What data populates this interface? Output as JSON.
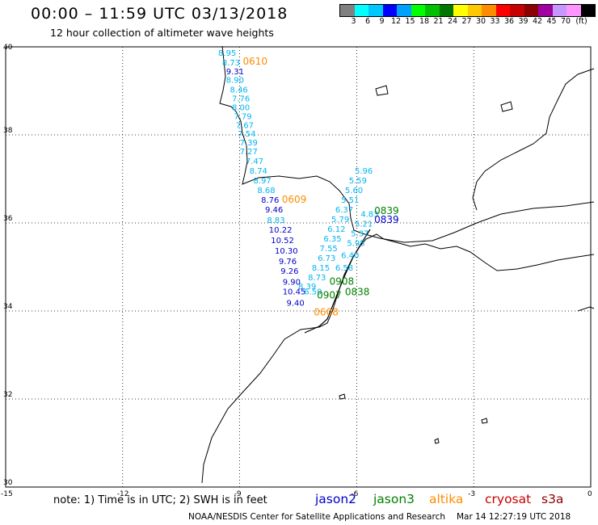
{
  "header": {
    "title": "00:00 – 11:59 UTC 03/13/2018",
    "subtitle": "12 hour collection of altimeter wave heights"
  },
  "legend": {
    "colors": [
      "#808080",
      "#00ffff",
      "#00c8ff",
      "#0000ff",
      "#00a0ff",
      "#00ff00",
      "#00c000",
      "#007800",
      "#ffff00",
      "#ffc800",
      "#ff8c00",
      "#ff0000",
      "#c80000",
      "#8b0000",
      "#a000a0",
      "#c896ff",
      "#ff96ff",
      "#000000"
    ],
    "labels": [
      "3",
      "6",
      "9",
      "12",
      "15",
      "18",
      "21",
      "24",
      "27",
      "30",
      "33",
      "36",
      "39",
      "42",
      "45",
      "70",
      "(ft)"
    ]
  },
  "axes": {
    "lat_labels": [
      "40",
      "38",
      "36",
      "34",
      "32",
      "30"
    ],
    "lon_labels": [
      "-15",
      "-12",
      "-9",
      "-6",
      "-3",
      "0"
    ]
  },
  "measurements": [
    {
      "t": "8.95",
      "lon": -9.55,
      "lat": 39.8,
      "c": "#00b4f0"
    },
    {
      "t": "8.73",
      "lon": -9.45,
      "lat": 39.58,
      "c": "#00b4f0"
    },
    {
      "t": "9.31",
      "lon": -9.35,
      "lat": 39.38,
      "c": "#0000c8"
    },
    {
      "t": "8.90",
      "lon": -9.35,
      "lat": 39.18,
      "c": "#00b4f0"
    },
    {
      "t": "8.46",
      "lon": -9.25,
      "lat": 38.96,
      "c": "#00b4f0"
    },
    {
      "t": "7.76",
      "lon": -9.2,
      "lat": 38.76,
      "c": "#00b4f0"
    },
    {
      "t": "8.00",
      "lon": -9.2,
      "lat": 38.56,
      "c": "#00b4f0"
    },
    {
      "t": "7.79",
      "lon": -9.15,
      "lat": 38.36,
      "c": "#00b4f0"
    },
    {
      "t": "7.67",
      "lon": -9.1,
      "lat": 38.16,
      "c": "#00b4f0"
    },
    {
      "t": "7.54",
      "lon": -9.05,
      "lat": 37.96,
      "c": "#00b4f0"
    },
    {
      "t": "7.39",
      "lon": -9.0,
      "lat": 37.76,
      "c": "#00b4f0"
    },
    {
      "t": "7.27",
      "lon": -9.0,
      "lat": 37.56,
      "c": "#00b4f0"
    },
    {
      "t": "7.47",
      "lon": -8.85,
      "lat": 37.34,
      "c": "#00b4f0"
    },
    {
      "t": "8.74",
      "lon": -8.75,
      "lat": 37.12,
      "c": "#00b4f0"
    },
    {
      "t": "8.97",
      "lon": -8.65,
      "lat": 36.9,
      "c": "#00b4f0"
    },
    {
      "t": "8.68",
      "lon": -8.55,
      "lat": 36.68,
      "c": "#00b4f0"
    },
    {
      "t": "8.76",
      "lon": -8.45,
      "lat": 36.46,
      "c": "#0000c8"
    },
    {
      "t": "9.46",
      "lon": -8.35,
      "lat": 36.24,
      "c": "#0000c8"
    },
    {
      "t": "8.83",
      "lon": -8.3,
      "lat": 36.0,
      "c": "#00b4f0"
    },
    {
      "t": "10.22",
      "lon": -8.25,
      "lat": 35.78,
      "c": "#0000c8"
    },
    {
      "t": "10.52",
      "lon": -8.2,
      "lat": 35.54,
      "c": "#0000c8"
    },
    {
      "t": "10.30",
      "lon": -8.1,
      "lat": 35.3,
      "c": "#0000c8"
    },
    {
      "t": "9.76",
      "lon": -8.0,
      "lat": 35.06,
      "c": "#0000c8"
    },
    {
      "t": "9.26",
      "lon": -7.95,
      "lat": 34.84,
      "c": "#0000c8"
    },
    {
      "t": "9.90",
      "lon": -7.9,
      "lat": 34.6,
      "c": "#0000c8"
    },
    {
      "t": "10.45",
      "lon": -7.9,
      "lat": 34.38,
      "c": "#0000c8"
    },
    {
      "t": "9.40",
      "lon": -7.8,
      "lat": 34.12,
      "c": "#0000c8"
    },
    {
      "t": "8.39",
      "lon": -7.5,
      "lat": 34.5,
      "c": "#00b4f0"
    },
    {
      "t": "6.59",
      "lon": -7.35,
      "lat": 34.38,
      "c": "#00b4f0"
    },
    {
      "t": "8.73",
      "lon": -7.25,
      "lat": 34.7,
      "c": "#00b4f0"
    },
    {
      "t": "8.15",
      "lon": -7.15,
      "lat": 34.92,
      "c": "#00b4f0"
    },
    {
      "t": "6.73",
      "lon": -7.0,
      "lat": 35.14,
      "c": "#00b4f0"
    },
    {
      "t": "7.55",
      "lon": -6.95,
      "lat": 35.36,
      "c": "#00b4f0"
    },
    {
      "t": "6.35",
      "lon": -6.85,
      "lat": 35.58,
      "c": "#00b4f0"
    },
    {
      "t": "6.12",
      "lon": -6.75,
      "lat": 35.8,
      "c": "#00b4f0"
    },
    {
      "t": "5.79",
      "lon": -6.65,
      "lat": 36.02,
      "c": "#00b4f0"
    },
    {
      "t": "6.37",
      "lon": -6.55,
      "lat": 36.24,
      "c": "#00b4f0"
    },
    {
      "t": "5.51",
      "lon": -6.4,
      "lat": 36.46,
      "c": "#00b4f0"
    },
    {
      "t": "5.60",
      "lon": -6.3,
      "lat": 36.68,
      "c": "#00b4f0"
    },
    {
      "t": "5.59",
      "lon": -6.2,
      "lat": 36.9,
      "c": "#00b4f0"
    },
    {
      "t": "5.96",
      "lon": -6.05,
      "lat": 37.12,
      "c": "#00b4f0"
    },
    {
      "t": "6.58",
      "lon": -6.55,
      "lat": 34.92,
      "c": "#00b4f0"
    },
    {
      "t": "6.40",
      "lon": -6.4,
      "lat": 35.2,
      "c": "#00b4f0"
    },
    {
      "t": "5.95",
      "lon": -6.25,
      "lat": 35.48,
      "c": "#00b4f0"
    },
    {
      "t": "5.37",
      "lon": -6.15,
      "lat": 35.7,
      "c": "#00b4f0"
    },
    {
      "t": "5.21",
      "lon": -6.05,
      "lat": 35.92,
      "c": "#00b4f0"
    },
    {
      "t": "4.83",
      "lon": -5.9,
      "lat": 36.14,
      "c": "#00b4f0"
    }
  ],
  "pass_labels": [
    {
      "t": "0610",
      "lon": -8.92,
      "lat": 39.6,
      "c": "#ff8c00"
    },
    {
      "t": "0609",
      "lon": -7.92,
      "lat": 36.46,
      "c": "#ff8c00"
    },
    {
      "t": "0608",
      "lon": -7.1,
      "lat": 33.9,
      "c": "#ff8c00"
    },
    {
      "t": "0908",
      "lon": -6.7,
      "lat": 34.6,
      "c": "#008000"
    },
    {
      "t": "0838",
      "lon": -6.3,
      "lat": 34.36,
      "c": "#008000"
    },
    {
      "t": "0907",
      "lon": -7.02,
      "lat": 34.28,
      "c": "#008000"
    },
    {
      "t": "0839",
      "lon": -5.55,
      "lat": 36.2,
      "c": "#008000"
    },
    {
      "t": "0839",
      "lon": -5.55,
      "lat": 36.0,
      "c": "#0000c8"
    }
  ],
  "footer": {
    "note": "note: 1) Time is in UTC; 2) SWH is in feet",
    "satellites": [
      {
        "name": "jason2",
        "color": "#0000c8"
      },
      {
        "name": "jason3",
        "color": "#008000"
      },
      {
        "name": "altika",
        "color": "#ff8c00"
      },
      {
        "name": "cryosat",
        "color": "#c80000"
      },
      {
        "name": "s3a",
        "color": "#8b0000"
      }
    ],
    "credit": "NOAA/NESDIS Center for Satellite Applications and Research",
    "timestamp": "Mar 14 12:27:19 UTC 2018"
  }
}
